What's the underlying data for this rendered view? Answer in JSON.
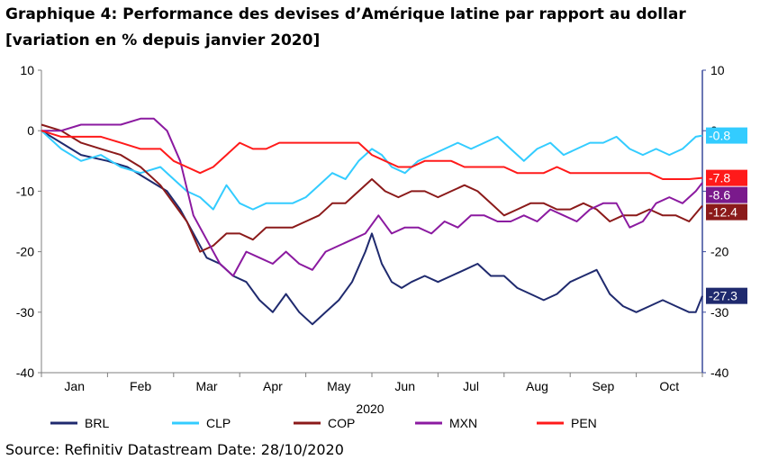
{
  "title": "Graphique 4: Performance des devises d’Amérique latine par rapport au dollar [variation en % depuis janvier 2020]",
  "source": "Source: Refinitiv Datastream Date: 28/10/2020",
  "chart_data": {
    "type": "line",
    "title": "Graphique 4: Performance des devises d’Amérique latine par rapport au dollar [variation en % depuis janvier 2020]",
    "xlabel": "2020",
    "ylabel": "",
    "ylim": [
      -40,
      10
    ],
    "y2lim": [
      -40,
      10
    ],
    "yticks": [
      10,
      0,
      -10,
      -20,
      -30,
      -40
    ],
    "xlim": [
      0,
      10
    ],
    "x_ticks": [
      0.5,
      1.5,
      2.5,
      3.5,
      4.5,
      5.5,
      6.5,
      7.5,
      8.5,
      9.5
    ],
    "x_tick_labels": [
      "Jan",
      "Feb",
      "Mar",
      "Apr",
      "May",
      "Jun",
      "Jul",
      "Aug",
      "Sep",
      "Oct"
    ],
    "grid": false,
    "legend": "bottom",
    "series": [
      {
        "name": "BRL",
        "color": "#1f2a6e",
        "end_label": "-27.3",
        "label_color": "#1f2a6e",
        "x": [
          0,
          0.3,
          0.6,
          1.0,
          1.3,
          1.6,
          1.9,
          2.1,
          2.3,
          2.5,
          2.7,
          2.9,
          3.1,
          3.3,
          3.5,
          3.7,
          3.9,
          4.1,
          4.3,
          4.5,
          4.7,
          4.9,
          5.0,
          5.15,
          5.3,
          5.45,
          5.6,
          5.8,
          6.0,
          6.2,
          6.4,
          6.6,
          6.8,
          7.0,
          7.2,
          7.4,
          7.6,
          7.8,
          8.0,
          8.2,
          8.4,
          8.6,
          8.8,
          9.0,
          9.2,
          9.4,
          9.6,
          9.8,
          9.9,
          10.0
        ],
        "y": [
          0,
          -2,
          -4,
          -5,
          -6,
          -8,
          -10,
          -13,
          -17,
          -21,
          -22,
          -24,
          -25,
          -28,
          -30,
          -27,
          -30,
          -32,
          -30,
          -28,
          -25,
          -20,
          -17,
          -22,
          -25,
          -26,
          -25,
          -24,
          -25,
          -24,
          -23,
          -22,
          -24,
          -24,
          -26,
          -27,
          -28,
          -27,
          -25,
          -24,
          -23,
          -27,
          -29,
          -30,
          -29,
          -28,
          -29,
          -30,
          -30,
          -27.3
        ]
      },
      {
        "name": "CLP",
        "color": "#33ccff",
        "end_label": "-0.8",
        "label_color": "#33ccff",
        "x": [
          0,
          0.3,
          0.6,
          0.9,
          1.2,
          1.5,
          1.8,
          2.0,
          2.2,
          2.4,
          2.6,
          2.8,
          3.0,
          3.2,
          3.4,
          3.6,
          3.8,
          4.0,
          4.2,
          4.4,
          4.6,
          4.8,
          5.0,
          5.15,
          5.3,
          5.5,
          5.7,
          5.9,
          6.1,
          6.3,
          6.5,
          6.7,
          6.9,
          7.1,
          7.3,
          7.5,
          7.7,
          7.9,
          8.1,
          8.3,
          8.5,
          8.7,
          8.9,
          9.1,
          9.3,
          9.5,
          9.7,
          9.9,
          10.0
        ],
        "y": [
          0,
          -3,
          -5,
          -4,
          -6,
          -7,
          -6,
          -8,
          -10,
          -11,
          -13,
          -9,
          -12,
          -13,
          -12,
          -12,
          -12,
          -11,
          -9,
          -7,
          -8,
          -5,
          -3,
          -4,
          -6,
          -7,
          -5,
          -4,
          -3,
          -2,
          -3,
          -2,
          -1,
          -3,
          -5,
          -3,
          -2,
          -4,
          -3,
          -2,
          -2,
          -1,
          -3,
          -4,
          -3,
          -4,
          -3,
          -1,
          -0.8
        ]
      },
      {
        "name": "COP",
        "color": "#8b1a1a",
        "end_label": "-12.4",
        "label_color": "#8b1a1a",
        "x": [
          0,
          0.3,
          0.6,
          0.9,
          1.2,
          1.5,
          1.8,
          2.0,
          2.2,
          2.4,
          2.6,
          2.8,
          3.0,
          3.2,
          3.4,
          3.6,
          3.8,
          4.0,
          4.2,
          4.4,
          4.6,
          4.8,
          5.0,
          5.2,
          5.4,
          5.6,
          5.8,
          6.0,
          6.2,
          6.4,
          6.6,
          6.8,
          7.0,
          7.2,
          7.4,
          7.6,
          7.8,
          8.0,
          8.2,
          8.4,
          8.6,
          8.8,
          9.0,
          9.2,
          9.4,
          9.6,
          9.8,
          10.0
        ],
        "y": [
          1,
          0,
          -2,
          -3,
          -4,
          -6,
          -9,
          -12,
          -15,
          -20,
          -19,
          -17,
          -17,
          -18,
          -16,
          -16,
          -16,
          -15,
          -14,
          -12,
          -12,
          -10,
          -8,
          -10,
          -11,
          -10,
          -10,
          -11,
          -10,
          -9,
          -10,
          -12,
          -14,
          -13,
          -12,
          -12,
          -13,
          -13,
          -12,
          -13,
          -15,
          -14,
          -14,
          -13,
          -14,
          -14,
          -15,
          -12.4
        ]
      },
      {
        "name": "MXN",
        "color": "#8b1aa0",
        "end_label": "-8.6",
        "label_color": "#7a1a8c",
        "x": [
          0,
          0.3,
          0.6,
          0.9,
          1.2,
          1.5,
          1.7,
          1.9,
          2.1,
          2.3,
          2.5,
          2.7,
          2.9,
          3.1,
          3.3,
          3.5,
          3.7,
          3.9,
          4.1,
          4.3,
          4.5,
          4.7,
          4.9,
          5.1,
          5.3,
          5.5,
          5.7,
          5.9,
          6.1,
          6.3,
          6.5,
          6.7,
          6.9,
          7.1,
          7.3,
          7.5,
          7.7,
          7.9,
          8.1,
          8.3,
          8.5,
          8.7,
          8.9,
          9.1,
          9.3,
          9.5,
          9.7,
          9.9,
          10.0
        ],
        "y": [
          0,
          0,
          1,
          1,
          1,
          2,
          2,
          0,
          -5,
          -14,
          -18,
          -22,
          -24,
          -20,
          -21,
          -22,
          -20,
          -22,
          -23,
          -20,
          -19,
          -18,
          -17,
          -14,
          -17,
          -16,
          -16,
          -17,
          -15,
          -16,
          -14,
          -14,
          -15,
          -15,
          -14,
          -15,
          -13,
          -14,
          -15,
          -13,
          -12,
          -12,
          -16,
          -15,
          -12,
          -11,
          -12,
          -10,
          -8.6
        ]
      },
      {
        "name": "PEN",
        "color": "#ff1a1a",
        "end_label": "-7.8",
        "label_color": "#ff1a1a",
        "x": [
          0,
          0.3,
          0.6,
          0.9,
          1.2,
          1.5,
          1.8,
          2.0,
          2.2,
          2.4,
          2.6,
          2.8,
          3.0,
          3.2,
          3.4,
          3.6,
          3.8,
          4.0,
          4.2,
          4.4,
          4.6,
          4.8,
          5.0,
          5.2,
          5.4,
          5.6,
          5.8,
          6.0,
          6.2,
          6.4,
          6.6,
          6.8,
          7.0,
          7.2,
          7.4,
          7.6,
          7.8,
          8.0,
          8.2,
          8.4,
          8.6,
          8.8,
          9.0,
          9.2,
          9.4,
          9.6,
          9.8,
          10.0
        ],
        "y": [
          0,
          -1,
          -1,
          -1,
          -2,
          -3,
          -3,
          -5,
          -6,
          -7,
          -6,
          -4,
          -2,
          -3,
          -3,
          -2,
          -2,
          -2,
          -2,
          -2,
          -2,
          -2,
          -4,
          -5,
          -6,
          -6,
          -5,
          -5,
          -5,
          -6,
          -6,
          -6,
          -6,
          -7,
          -7,
          -7,
          -6,
          -7,
          -7,
          -7,
          -7,
          -7,
          -7,
          -7,
          -8,
          -8,
          -8,
          -7.8
        ]
      }
    ]
  }
}
